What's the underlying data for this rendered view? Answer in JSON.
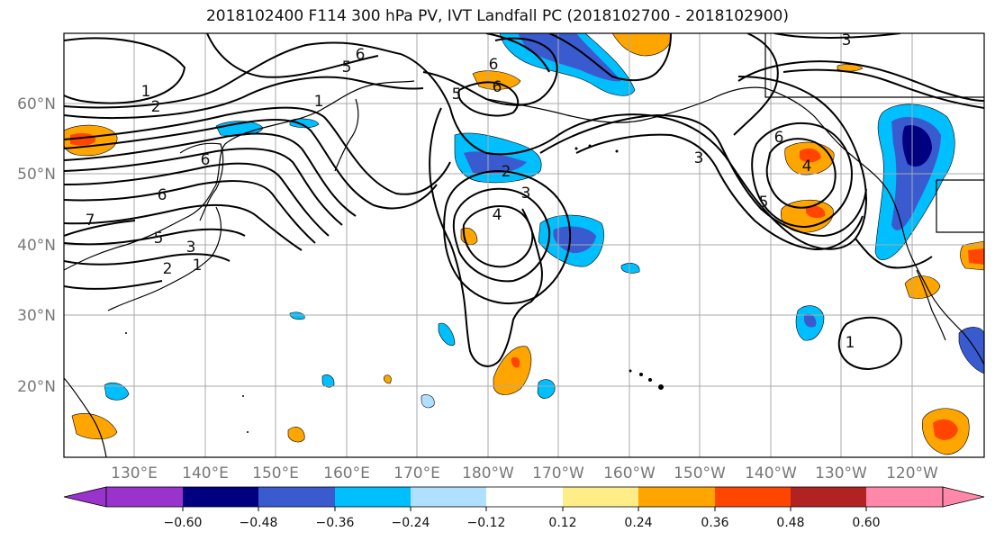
{
  "title": "2018102400 F114 300 hPa PV, IVT Landfall PC (2018102700 - 2018102900)",
  "lon_labels": [
    "130°E",
    "140°E",
    "150°E",
    "160°E",
    "170°E",
    "180°W",
    "170°W",
    "160°W",
    "150°W",
    "140°W",
    "130°W",
    "120°W"
  ],
  "lat_labels": [
    "60°N",
    "50°N",
    "40°N",
    "30°N",
    "20°N"
  ],
  "colorbar": {
    "tick_labels": [
      "−0.60",
      "−0.48",
      "−0.36",
      "−0.24",
      "−0.12",
      "0.12",
      "0.24",
      "0.36",
      "0.48",
      "0.60"
    ],
    "colors": [
      "#9933cc",
      "#000080",
      "#3a5bd0",
      "#00bfff",
      "#b0e0ff",
      "#ffffff",
      "#ffee88",
      "#ffa500",
      "#ff4500",
      "#b22222",
      "#ff88aa"
    ]
  },
  "contour_labels": [
    "1",
    "2",
    "5",
    "6",
    "1",
    "6",
    "6",
    "7",
    "5",
    "3",
    "2",
    "1",
    "6",
    "6",
    "5",
    "3",
    "4",
    "2",
    "6",
    "3",
    "5",
    "4",
    "1",
    "3"
  ]
}
